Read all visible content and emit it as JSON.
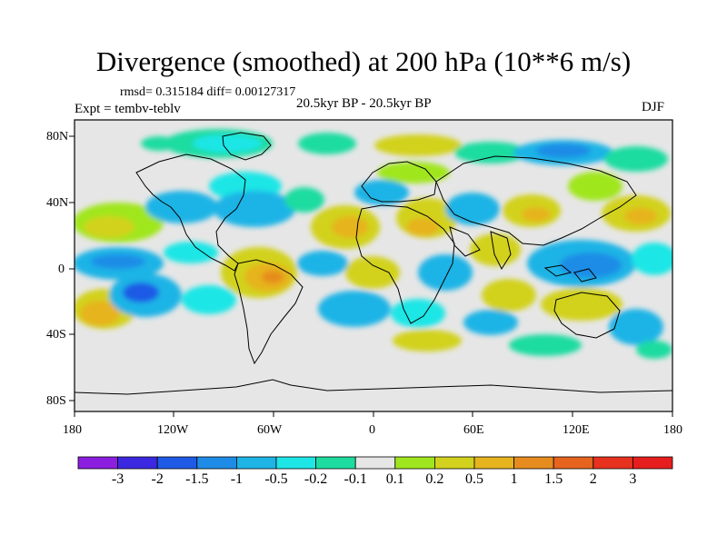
{
  "title": "Divergence (smoothed) at 200 hPa (10**6 m/s)",
  "stats": "rmsd= 0.315184  diff= 0.00127317",
  "experiment": "Expt = tembv-teblv",
  "period": "20.5kyr BP - 20.5kyr BP",
  "season": "DJF",
  "axes": {
    "lat_ticks": [
      "80N",
      "40N",
      "0",
      "40S",
      "80S"
    ],
    "lon_ticks": [
      "180",
      "120W",
      "60W",
      "0",
      "60E",
      "120E",
      "180"
    ]
  },
  "colorbar": {
    "labels": [
      "-3",
      "-2",
      "-1.5",
      "-1",
      "-0.5",
      "-0.2",
      "-0.1",
      "0.1",
      "0.2",
      "0.5",
      "1",
      "1.5",
      "2",
      "3"
    ],
    "colors": [
      "#8c1ee0",
      "#3c28e0",
      "#1e5ae6",
      "#1e8ce6",
      "#1eb4e6",
      "#1ee6e6",
      "#1edca0",
      "#e6e6e6",
      "#a0e61e",
      "#d2d21e",
      "#e6b41e",
      "#e68c1e",
      "#e6641e",
      "#e6321e",
      "#e61e1e"
    ]
  },
  "map": {
    "ocean_color": "#e6e6e6"
  }
}
